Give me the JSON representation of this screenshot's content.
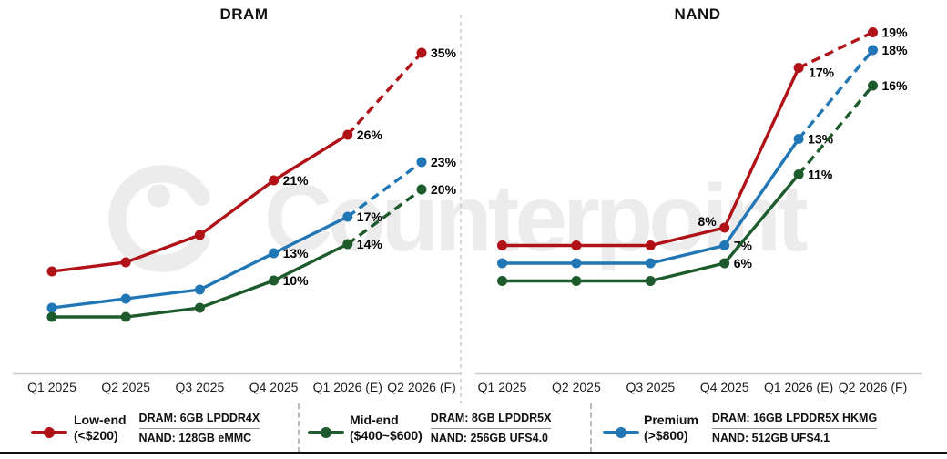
{
  "watermark": {
    "text": "Counterpoint"
  },
  "chart_data": [
    {
      "type": "line",
      "title": "DRAM",
      "unit": "%",
      "x": [
        "Q1 2025",
        "Q2 2025",
        "Q3 2025",
        "Q4 2025",
        "Q1 2026 (E)",
        "Q2 2026 (F)"
      ],
      "ylim": [
        0,
        40
      ],
      "grid": false,
      "legend_position": "bottom",
      "dashed_from_index": 4,
      "series": [
        {
          "name": "Low-end (<$200)",
          "color": "#b01218",
          "values": [
            11,
            12,
            15,
            21,
            26,
            35
          ],
          "labels": [
            "",
            "",
            "",
            "21%",
            "26%",
            "35%"
          ]
        },
        {
          "name": "Premium (>$800)",
          "color": "#2177b5",
          "values": [
            7,
            8,
            9,
            13,
            17,
            23
          ],
          "labels": [
            "",
            "",
            "",
            "13%",
            "17%",
            "23%"
          ]
        },
        {
          "name": "Mid-end ($400~$600)",
          "color": "#1e5b2c",
          "values": [
            6,
            6,
            7,
            10,
            14,
            20
          ],
          "labels": [
            "",
            "",
            "",
            "10%",
            "14%",
            "20%"
          ]
        }
      ]
    },
    {
      "type": "line",
      "title": "NAND",
      "unit": "%",
      "x": [
        "Q1 2025",
        "Q2 2025",
        "Q3 2025",
        "Q4 2025",
        "Q1 2026 (E)",
        "Q2 2026 (F)"
      ],
      "ylim": [
        0,
        20
      ],
      "grid": false,
      "legend_position": "bottom",
      "dashed_from_index": 4,
      "series": [
        {
          "name": "Low-end (<$200)",
          "color": "#b01218",
          "values": [
            7,
            7,
            7,
            8,
            17,
            19
          ],
          "labels": [
            "",
            "",
            "",
            "8%",
            "17%",
            "19%"
          ]
        },
        {
          "name": "Premium (>$800)",
          "color": "#2177b5",
          "values": [
            6,
            6,
            6,
            7,
            13,
            18
          ],
          "labels": [
            "",
            "",
            "",
            "7%",
            "13%",
            "18%"
          ]
        },
        {
          "name": "Mid-end ($400~$600)",
          "color": "#1e5b2c",
          "values": [
            5,
            5,
            5,
            6,
            11,
            16
          ],
          "labels": [
            "",
            "",
            "",
            "6%",
            "11%",
            "16%"
          ]
        }
      ]
    }
  ],
  "legend": {
    "entries": [
      {
        "name_line1": "Low-end",
        "name_line2": "(<$200)",
        "color": "#b01218",
        "dram": "DRAM: 6GB LPDDR4X",
        "nand": "NAND: 128GB eMMC"
      },
      {
        "name_line1": "Mid-end",
        "name_line2": "($400~$600)",
        "color": "#1e5b2c",
        "dram": "DRAM: 8GB LPDDR5X",
        "nand": "NAND: 256GB UFS4.0"
      },
      {
        "name_line1": "Premium",
        "name_line2": "(>$800)",
        "color": "#2177b5",
        "dram": "DRAM: 16GB LPDDR5X HKMG",
        "nand": "NAND: 512GB UFS4.1"
      }
    ]
  }
}
